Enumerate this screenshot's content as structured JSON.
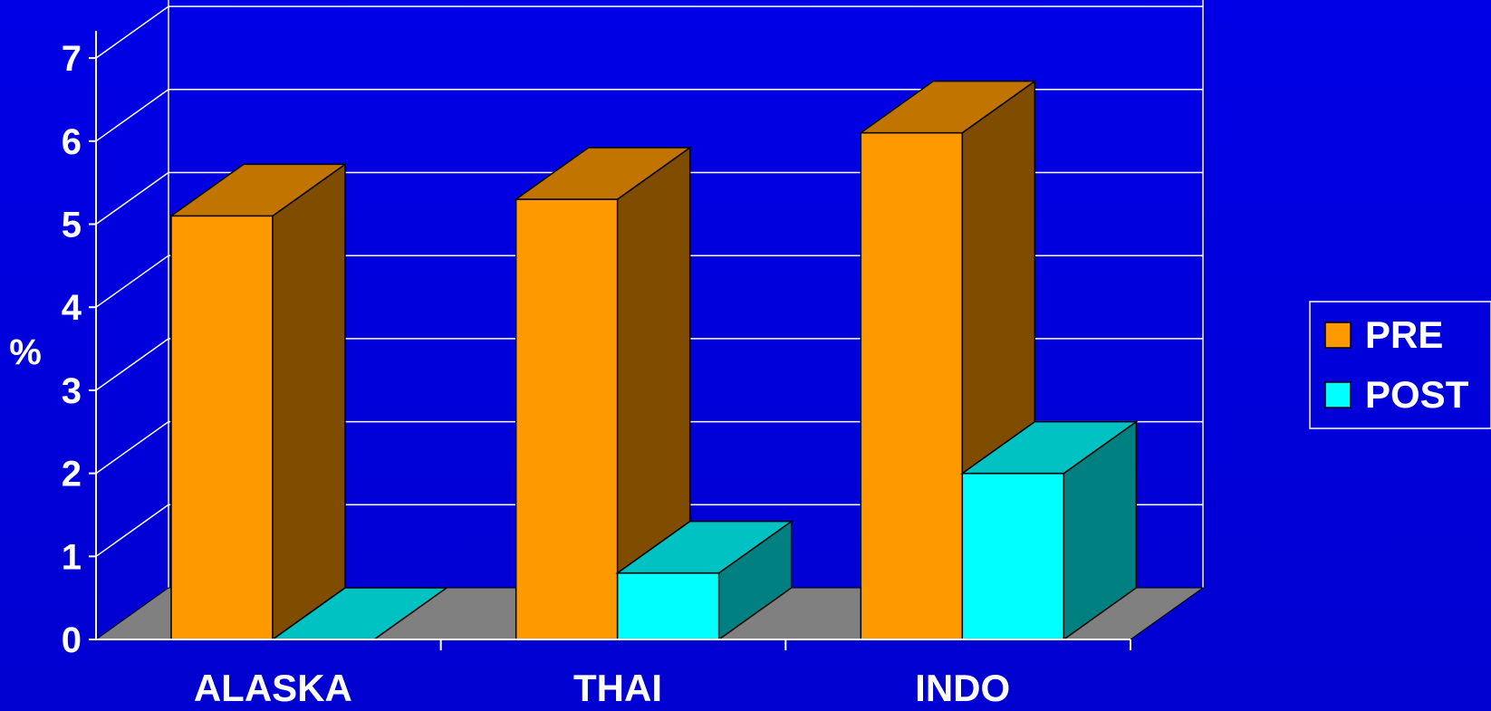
{
  "chart_data": {
    "type": "bar",
    "style": "3d-clustered",
    "title": "",
    "xlabel": "",
    "ylabel": "%",
    "ylim": [
      0,
      7
    ],
    "yticks": [
      "0",
      "1",
      "2",
      "3",
      "4",
      "5",
      "6",
      "7"
    ],
    "categories": [
      "ALASKA",
      "THAI",
      "INDO"
    ],
    "series": [
      {
        "name": "PRE",
        "values": [
          5.1,
          5.3,
          6.1
        ],
        "color": "#ff9900"
      },
      {
        "name": "POST",
        "values": [
          0.0,
          0.8,
          2.0
        ],
        "color": "#00ffff"
      }
    ],
    "grid": true,
    "legend": "right",
    "colors": {
      "background": "#0000e6",
      "gridline": "#ffffff",
      "floor": "#808080",
      "text": "#ffffff"
    }
  }
}
